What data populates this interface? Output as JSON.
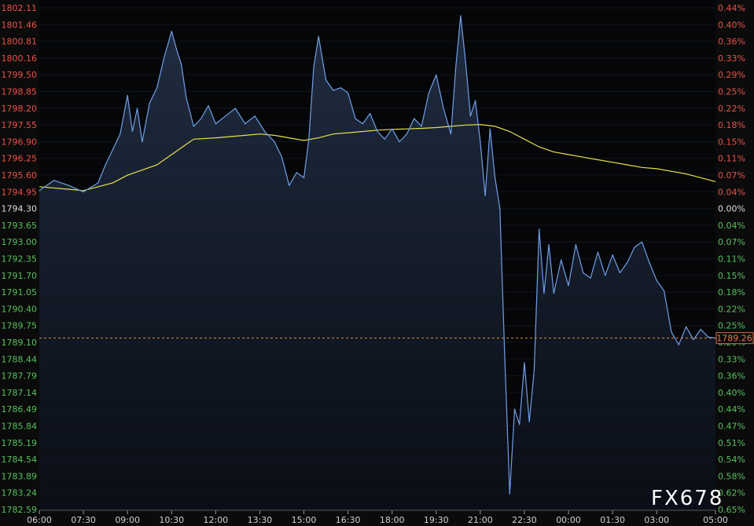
{
  "chart_data": {
    "type": "line",
    "y_left_labels": [
      "1802.11",
      "1801.46",
      "1800.81",
      "1800.16",
      "1799.50",
      "1798.85",
      "1798.20",
      "1797.55",
      "1796.90",
      "1796.25",
      "1795.60",
      "1794.95",
      "1794.30",
      "1793.65",
      "1793.00",
      "1792.35",
      "1791.70",
      "1791.05",
      "1790.40",
      "1789.75",
      "1789.10",
      "1788.44",
      "1787.79",
      "1787.14",
      "1786.49",
      "1785.84",
      "1785.19",
      "1784.54",
      "1783.89",
      "1783.24",
      "1782.59"
    ],
    "y_right_labels": [
      "0.44%",
      "0.40%",
      "0.36%",
      "0.33%",
      "0.29%",
      "0.25%",
      "0.22%",
      "0.18%",
      "0.15%",
      "0.11%",
      "0.07%",
      "0.04%",
      "0.00%",
      "0.04%",
      "0.07%",
      "0.11%",
      "0.15%",
      "0.18%",
      "0.22%",
      "0.25%",
      "0.29%",
      "0.33%",
      "0.36%",
      "0.40%",
      "0.44%",
      "0.47%",
      "0.51%",
      "0.54%",
      "0.58%",
      "0.62%",
      "0.65%"
    ],
    "x_labels": [
      "06:00",
      "07:30",
      "09:00",
      "10:30",
      "12:00",
      "13:30",
      "15:00",
      "16:30",
      "18:00",
      "19:30",
      "21:00",
      "22:30",
      "00:00",
      "01:30",
      "03:00",
      "05:00"
    ],
    "ylim": [
      1782.59,
      1802.11
    ],
    "reference_price": 1794.3,
    "last_price": "1789.26",
    "last_price_value": 1789.26,
    "series": [
      {
        "kind": "price",
        "color": "#6f9fe8",
        "x": [
          "06:00",
          "06:30",
          "07:00",
          "07:30",
          "08:00",
          "08:15",
          "08:30",
          "08:45",
          "09:00",
          "09:10",
          "09:20",
          "09:30",
          "09:45",
          "10:00",
          "10:15",
          "10:30",
          "10:40",
          "10:50",
          "11:00",
          "11:15",
          "11:30",
          "11:45",
          "12:00",
          "12:20",
          "12:40",
          "13:00",
          "13:20",
          "13:40",
          "14:00",
          "14:15",
          "14:30",
          "14:45",
          "15:00",
          "15:10",
          "15:20",
          "15:30",
          "15:45",
          "16:00",
          "16:15",
          "16:30",
          "16:45",
          "17:00",
          "17:15",
          "17:30",
          "17:45",
          "18:00",
          "18:15",
          "18:30",
          "18:45",
          "19:00",
          "19:15",
          "19:30",
          "19:45",
          "20:00",
          "20:10",
          "20:20",
          "20:30",
          "20:40",
          "20:50",
          "21:00",
          "21:10",
          "21:20",
          "21:30",
          "21:40",
          "21:50",
          "22:00",
          "22:10",
          "22:20",
          "22:30",
          "22:40",
          "22:50",
          "23:00",
          "23:10",
          "23:20",
          "23:30",
          "23:45",
          "00:00",
          "00:15",
          "00:30",
          "00:45",
          "01:00",
          "01:15",
          "01:30",
          "01:45",
          "02:00",
          "02:15",
          "02:30",
          "02:45",
          "03:00",
          "03:15",
          "03:30",
          "03:45",
          "04:00",
          "04:15",
          "04:30",
          "04:45",
          "05:00"
        ],
        "y": [
          1795.0,
          1795.4,
          1795.2,
          1794.95,
          1795.3,
          1796.0,
          1796.6,
          1797.2,
          1798.7,
          1797.3,
          1798.2,
          1796.9,
          1798.4,
          1799.0,
          1800.2,
          1801.2,
          1800.5,
          1799.9,
          1798.6,
          1797.5,
          1797.8,
          1798.3,
          1797.6,
          1797.9,
          1798.2,
          1797.6,
          1797.9,
          1797.3,
          1796.9,
          1796.3,
          1795.2,
          1795.7,
          1795.5,
          1797.0,
          1799.8,
          1801.0,
          1799.3,
          1798.9,
          1799.0,
          1798.8,
          1797.8,
          1797.6,
          1798.0,
          1797.3,
          1797.0,
          1797.4,
          1796.9,
          1797.2,
          1797.8,
          1797.5,
          1798.8,
          1799.5,
          1798.2,
          1797.2,
          1799.8,
          1801.8,
          1800.0,
          1797.9,
          1798.5,
          1796.9,
          1794.8,
          1797.4,
          1795.5,
          1794.3,
          1788.5,
          1783.2,
          1786.5,
          1785.9,
          1788.3,
          1786.0,
          1788.0,
          1793.5,
          1791.0,
          1792.9,
          1791.0,
          1792.3,
          1791.3,
          1792.9,
          1791.8,
          1791.6,
          1792.6,
          1791.7,
          1792.5,
          1791.8,
          1792.2,
          1792.8,
          1793.0,
          1792.2,
          1791.5,
          1791.1,
          1789.5,
          1789.0,
          1789.7,
          1789.2,
          1789.6,
          1789.3,
          1789.26
        ]
      },
      {
        "kind": "moving-average",
        "color": "#e6e24a",
        "x": [
          "06:00",
          "07:00",
          "07:30",
          "08:30",
          "09:00",
          "09:30",
          "10:00",
          "10:30",
          "11:00",
          "11:15",
          "12:00",
          "12:30",
          "13:00",
          "13:30",
          "14:00",
          "14:30",
          "15:00",
          "15:30",
          "16:00",
          "16:30",
          "17:00",
          "17:30",
          "18:00",
          "18:30",
          "19:00",
          "19:30",
          "20:00",
          "20:30",
          "21:00",
          "21:30",
          "22:00",
          "22:30",
          "23:00",
          "23:30",
          "00:00",
          "00:30",
          "01:00",
          "01:30",
          "02:00",
          "02:30",
          "03:00",
          "03:30",
          "04:00",
          "04:30",
          "05:00"
        ],
        "y": [
          1795.15,
          1795.05,
          1795.0,
          1795.3,
          1795.6,
          1795.8,
          1796.0,
          1796.4,
          1796.8,
          1797.0,
          1797.05,
          1797.1,
          1797.15,
          1797.2,
          1797.15,
          1797.05,
          1796.95,
          1797.05,
          1797.2,
          1797.25,
          1797.3,
          1797.35,
          1797.38,
          1797.4,
          1797.42,
          1797.45,
          1797.5,
          1797.55,
          1797.57,
          1797.5,
          1797.3,
          1797.0,
          1796.7,
          1796.5,
          1796.4,
          1796.3,
          1796.2,
          1796.1,
          1796.0,
          1795.9,
          1795.85,
          1795.75,
          1795.65,
          1795.5,
          1795.35
        ]
      }
    ]
  },
  "colors": {
    "up": "#e8534a",
    "down": "#58c05f",
    "neutral": "#dcdcdc",
    "last_line": "#e0913a",
    "axis_text": "#cfcfcf"
  },
  "watermark": "FX678"
}
